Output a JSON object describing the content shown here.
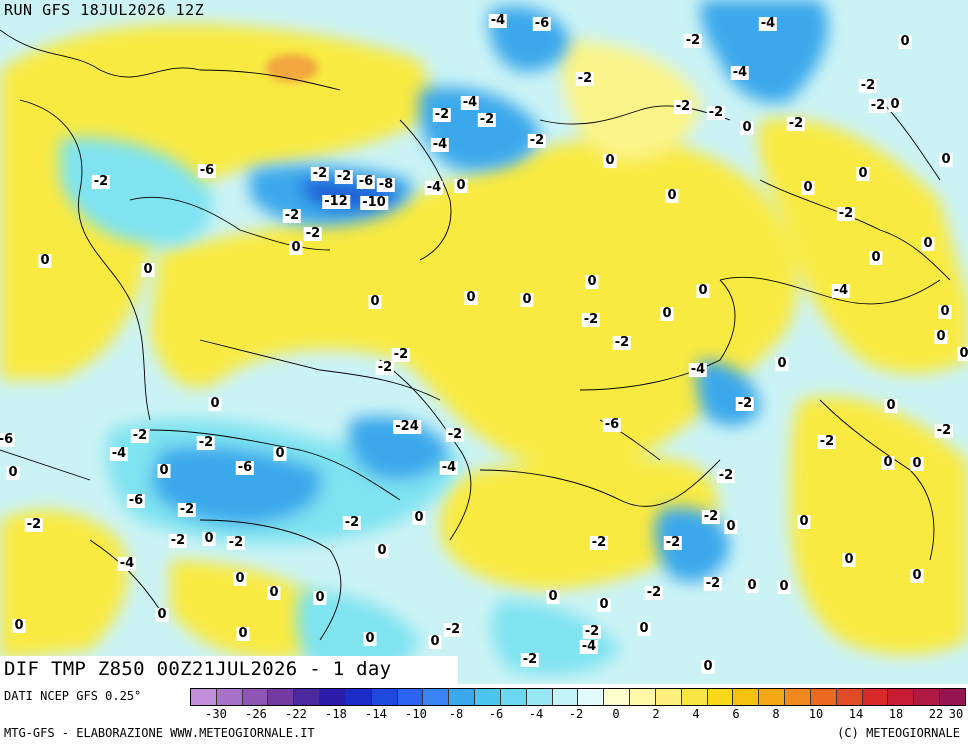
{
  "run_label": "RUN GFS 18JUL2026 12Z",
  "title": "DIF TMP Z850 00Z21JUL2026 - 1 day",
  "data_source": "DATI NCEP GFS 0.25°",
  "credit_left": "MTG-GFS - ELABORAZIONE WWW.METEOGIORNALE.IT",
  "credit_right": "(C) METEOGIORNALE",
  "colors": {
    "neutral": "#ffffd0",
    "yellow": "#f9ea43",
    "light_yellow": "#fbf48a",
    "cyan_light": "#c4f4f8",
    "cyan": "#7fe3f0",
    "blue_mid": "#3ba8ec",
    "blue_dark": "#1f5fd6",
    "orange": "#f2a640",
    "border": "#000000"
  },
  "legend": {
    "swatch_colors": [
      "#c18fd8",
      "#a872c8",
      "#8f55b6",
      "#733aa2",
      "#4a2a9c",
      "#2a1ca8",
      "#1c2cc8",
      "#1f48e0",
      "#2b64ee",
      "#3a84f4",
      "#3ba8ec",
      "#4cc4f0",
      "#6ad8f0",
      "#98e8f4",
      "#c4f4f8",
      "#e4fbfb",
      "#ffffd0",
      "#fff9a8",
      "#fdf07c",
      "#f9e645",
      "#f8d818",
      "#f6c010",
      "#f4a818",
      "#f08a20",
      "#ea6a24",
      "#e24a26",
      "#d82a28",
      "#c81c34",
      "#b01a44",
      "#961550"
    ],
    "tick_labels": [
      "-30",
      "-26",
      "-22",
      "-18",
      "-14",
      "-10",
      "-8",
      "-6",
      "-4",
      "-2",
      "0",
      "2",
      "4",
      "6",
      "8",
      "10",
      "14",
      "18",
      "22",
      "30"
    ]
  },
  "isotherm_labels": [
    "-4",
    "-6",
    "-4",
    "0",
    "-2",
    "-2",
    "-4",
    "-2",
    "-4",
    "-2",
    "0",
    "-2",
    "-2",
    "-2",
    "-2",
    "-2",
    "-4",
    "-2",
    "-2",
    "-6",
    "-2",
    "-6",
    "-8",
    "-4",
    "-12",
    "-10",
    "0",
    "0",
    "-2",
    "-2",
    "-2",
    "0",
    "0",
    "0",
    "0",
    "0",
    "0",
    "0",
    "0",
    "0",
    "-2",
    "0",
    "0",
    "0",
    "0",
    "0",
    "-2",
    "0",
    "-2",
    "-2",
    "0",
    "-4",
    "0",
    "0",
    "-2",
    "-4",
    "0",
    "0",
    "0",
    "-2",
    "-6",
    "0",
    "-2",
    "-24",
    "-2",
    "-6",
    "-2",
    "0",
    "-4",
    "-2",
    "-2",
    "-6",
    "-6",
    "0",
    "-4",
    "0",
    "-2",
    "0",
    "-2",
    "0",
    "-2",
    "0",
    "-2",
    "0",
    "-2",
    "0",
    "-2",
    "0",
    "-2",
    "0",
    "-2",
    "-2",
    "0",
    "-4",
    "0",
    "-2",
    "0",
    "0",
    "0",
    "0",
    "0",
    "0",
    "-2",
    "0",
    "0",
    "0",
    "0",
    "0",
    "-2",
    "-4",
    "0",
    "-2",
    "0",
    "-2",
    "0"
  ]
}
